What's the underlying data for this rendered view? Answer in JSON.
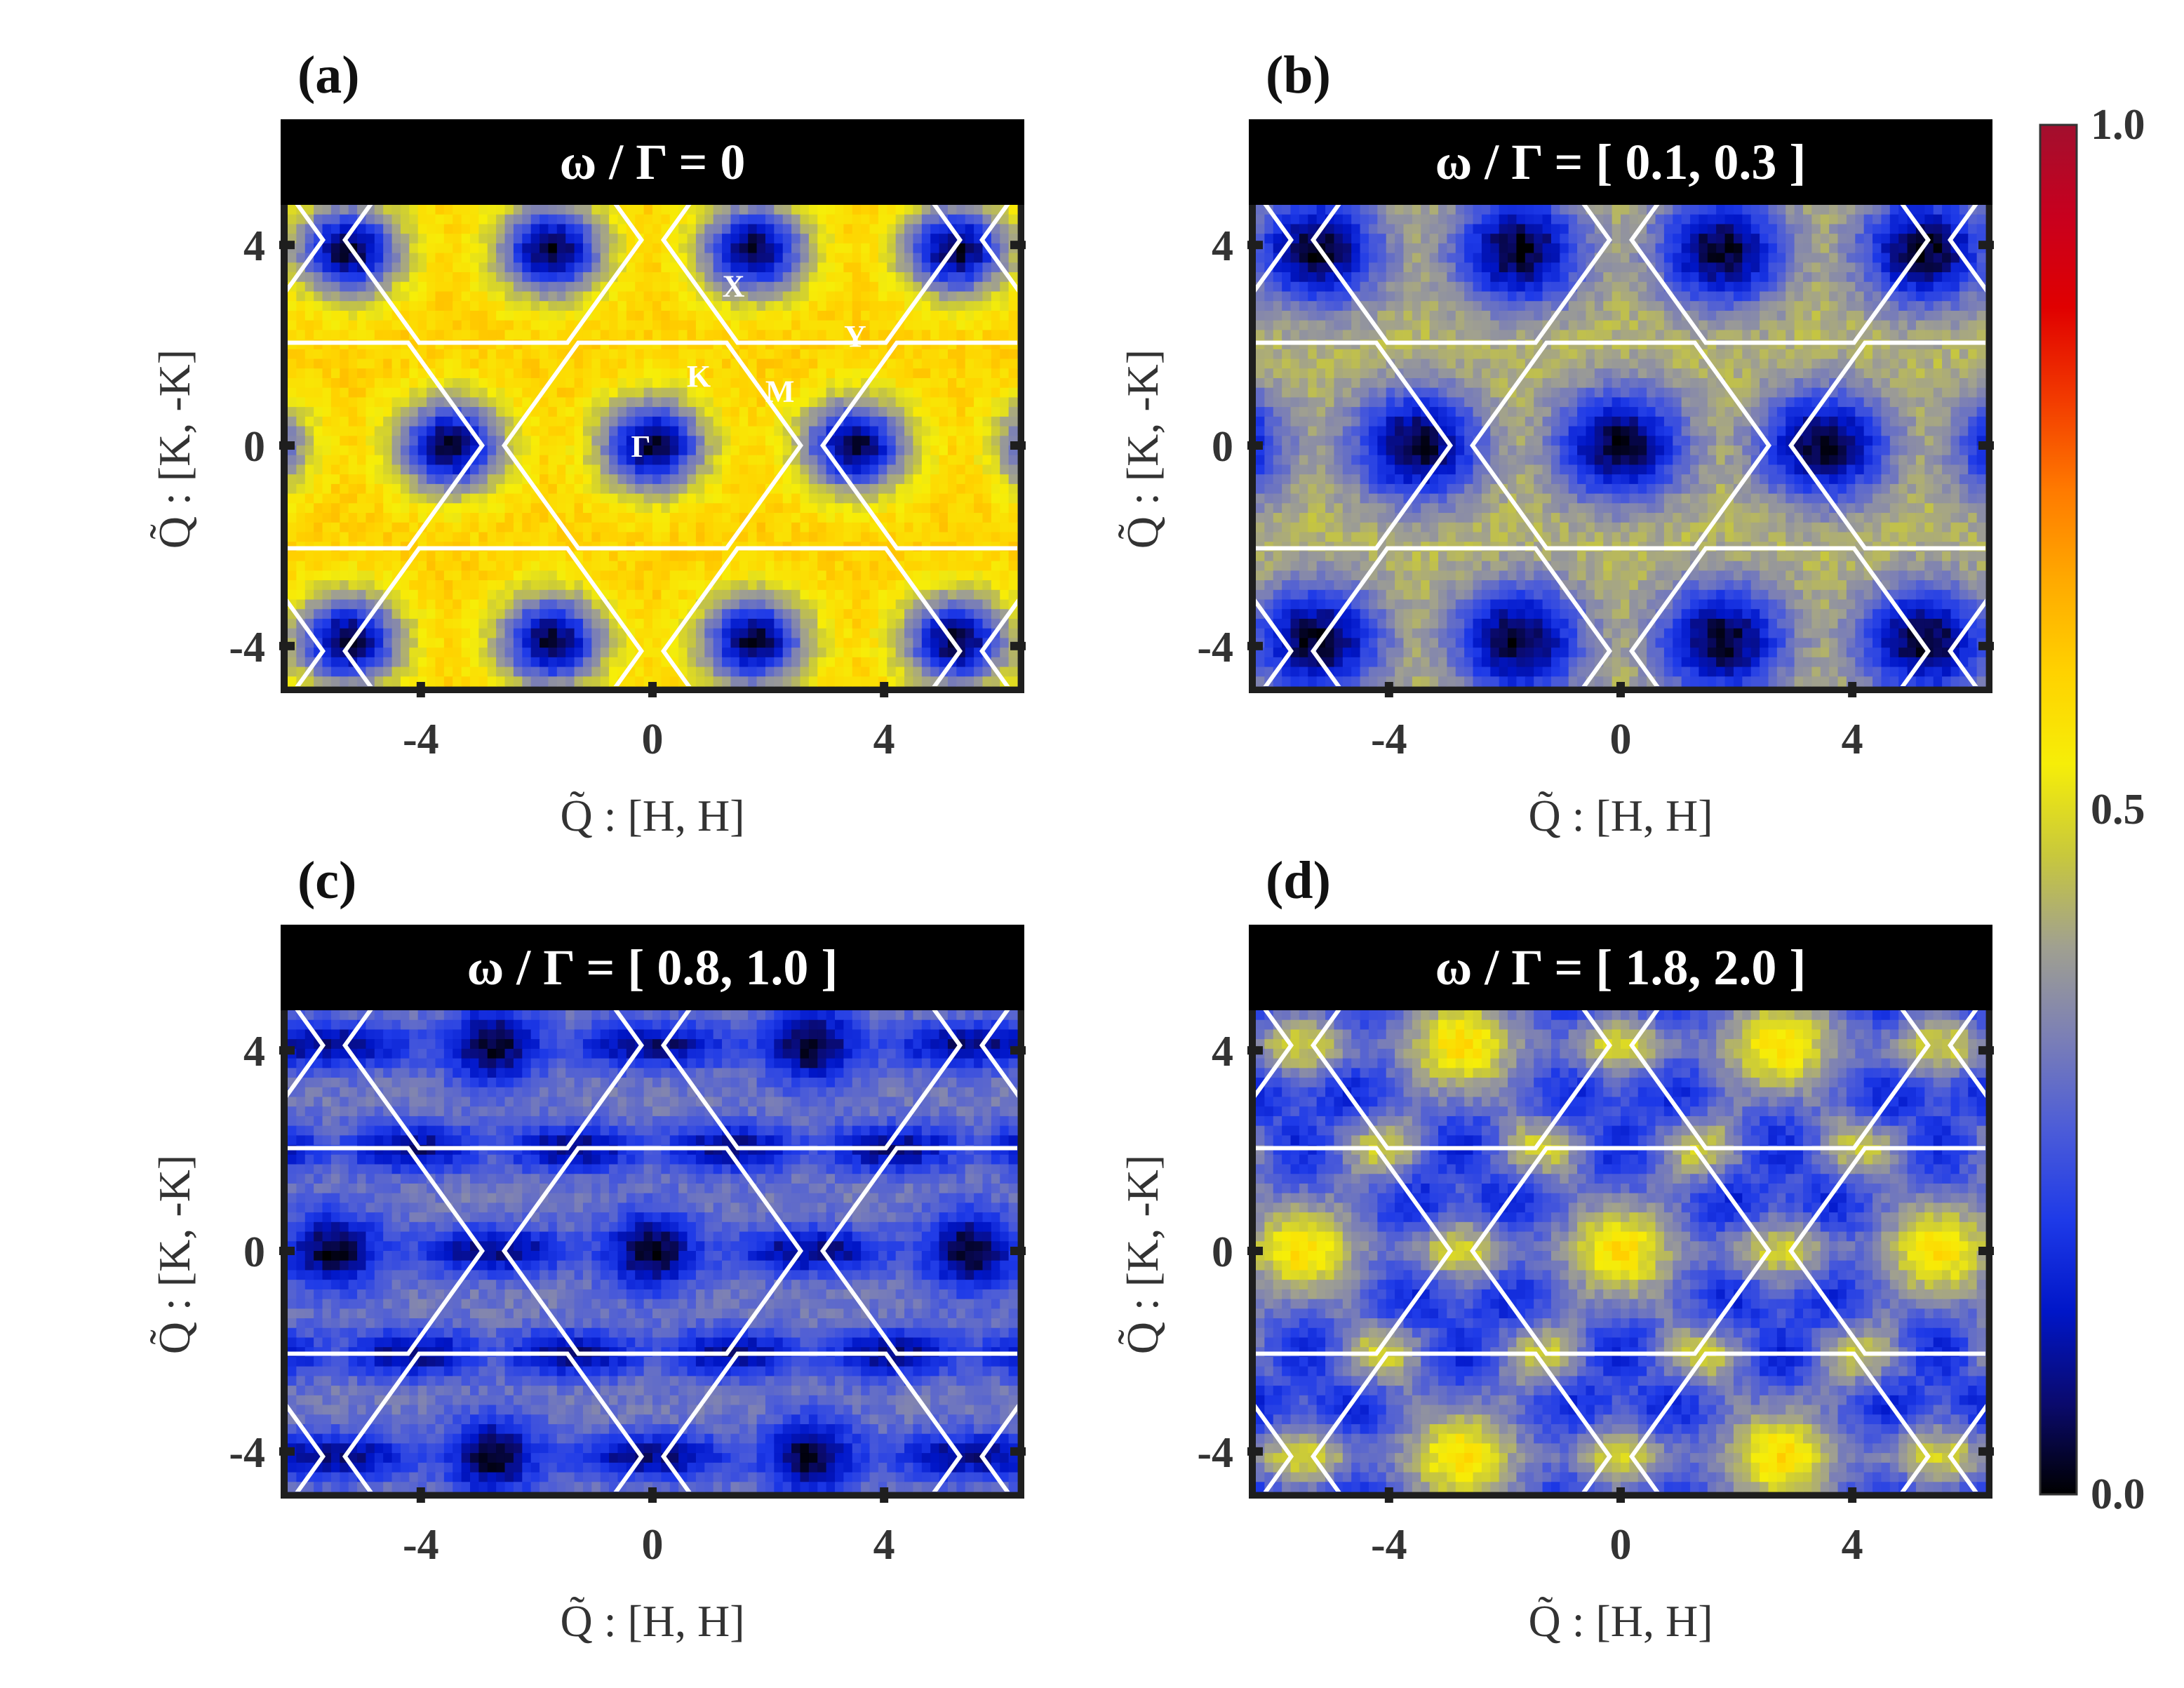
{
  "chart_data": [
    {
      "type": "heatmap",
      "panel_label": "(a)",
      "title": "ω / Γ = 0",
      "xlabel": "Q̃ : [H, H]",
      "ylabel": "Q̃ : [K, -K]",
      "xlim": [
        -6.3,
        6.3
      ],
      "ylim": [
        -4.8,
        4.8
      ],
      "xticks": [
        "-4",
        "0",
        "4"
      ],
      "yticks": [
        "-4",
        "0",
        "4"
      ],
      "background_level": 0.6,
      "features": [
        {
          "kind": "min",
          "level": 0.03,
          "width": 0.65,
          "at": "gamma-and-corners"
        }
      ],
      "point_labels": [
        {
          "text": "X",
          "x": 1.4,
          "y": 3.2
        },
        {
          "text": "Y",
          "x": 3.5,
          "y": 2.2
        },
        {
          "text": "K",
          "x": 0.8,
          "y": 1.4
        },
        {
          "text": "M",
          "x": 2.2,
          "y": 1.1
        },
        {
          "text": "Γ",
          "x": -0.2,
          "y": 0.0
        }
      ]
    },
    {
      "type": "heatmap",
      "panel_label": "(b)",
      "title": "ω / Γ = [ 0.1, 0.3 ]",
      "xlabel": "Q̃ : [H, H]",
      "ylabel": "Q̃ : [K, -K]",
      "xlim": [
        -6.3,
        6.3
      ],
      "ylim": [
        -4.8,
        4.8
      ],
      "xticks": [
        "-4",
        "0",
        "4"
      ],
      "yticks": [
        "-4",
        "0",
        "4"
      ],
      "background_level": 0.44,
      "features": [
        {
          "kind": "min",
          "level": 0.02,
          "width": 0.8,
          "at": "gamma-and-corners"
        }
      ]
    },
    {
      "type": "heatmap",
      "panel_label": "(c)",
      "title": "ω / Γ = [ 0.8, 1.0 ]",
      "xlabel": "Q̃ : [H, H]",
      "ylabel": "Q̃ : [K, -K]",
      "xlim": [
        -6.3,
        6.3
      ],
      "ylim": [
        -4.8,
        4.8
      ],
      "xticks": [
        "-4",
        "0",
        "4"
      ],
      "yticks": [
        "-4",
        "0",
        "4"
      ],
      "background_level": 0.32,
      "features": [
        {
          "kind": "min",
          "level": 0.02,
          "width": 0.55,
          "at": "gamma"
        },
        {
          "kind": "elongated-min",
          "level": 0.08,
          "at": "zone-corners"
        }
      ]
    },
    {
      "type": "heatmap",
      "panel_label": "(d)",
      "title": "ω / Γ = [ 1.8, 2.0 ]",
      "xlabel": "Q̃ : [H, H]",
      "ylabel": "Q̃ : [K, -K]",
      "xlim": [
        -6.3,
        6.3
      ],
      "ylim": [
        -4.8,
        4.8
      ],
      "xticks": [
        "-4",
        "0",
        "4"
      ],
      "yticks": [
        "-4",
        "0",
        "4"
      ],
      "background_level": 0.32,
      "features": [
        {
          "kind": "max",
          "level": 0.58,
          "width": 0.6,
          "at": "gamma"
        },
        {
          "kind": "max",
          "level": 0.5,
          "width": 0.45,
          "at": "zone-corners"
        },
        {
          "kind": "min",
          "level": 0.16,
          "width": 0.6,
          "at": "zone-edges"
        }
      ]
    }
  ],
  "colorbar": {
    "min_label": "0.0",
    "mid_label": "0.5",
    "max_label": "1.0",
    "range": [
      0.0,
      1.0
    ],
    "colors": [
      "#000000",
      "#0a0a6e",
      "#0016c8",
      "#1e3ae8",
      "#4c5cd8",
      "#7b7fb6",
      "#a0a090",
      "#c8c83c",
      "#f6ee08",
      "#ffd200",
      "#ffaa00",
      "#ff7a00",
      "#f23a00",
      "#e00000",
      "#c8001e",
      "#a20f2e"
    ]
  },
  "lattice": {
    "color": "#ffffff"
  }
}
